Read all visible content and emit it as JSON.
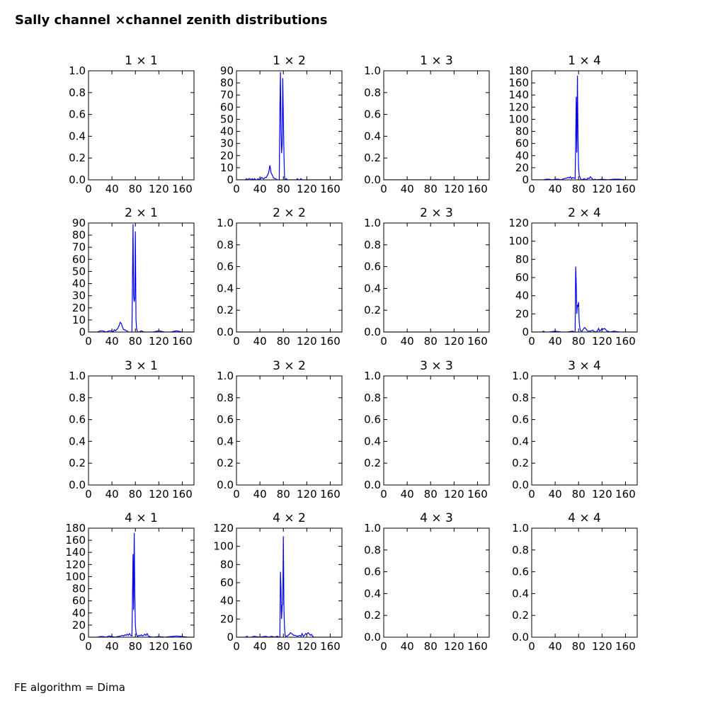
{
  "figure": {
    "title": "Sally channel ×channel zenith distributions",
    "footer": "FE algorithm = Dima",
    "line_color": "#0000ff"
  },
  "chart_data": [
    {
      "type": "line",
      "title": "1 × 1",
      "x": [],
      "y": [],
      "xlim": [
        0,
        180
      ],
      "ylim": [
        0,
        1
      ],
      "xticks": [
        0,
        40,
        80,
        120,
        160
      ],
      "yticks": [
        "0.0",
        "0.2",
        "0.4",
        "0.6",
        "0.8",
        "1.0"
      ],
      "grid": false
    },
    {
      "type": "line",
      "title": "1 × 2",
      "xlim": [
        0,
        180
      ],
      "ylim": [
        0,
        90
      ],
      "xticks": [
        0,
        40,
        80,
        120,
        160
      ],
      "yticks": [
        "0",
        "10",
        "20",
        "30",
        "40",
        "50",
        "60",
        "70",
        "80",
        "90"
      ],
      "grid": false,
      "x": [
        0,
        15,
        17,
        19,
        21,
        23,
        25,
        27,
        29,
        31,
        33,
        35,
        37,
        39,
        41,
        43,
        45,
        47,
        49,
        51,
        53,
        55,
        57,
        59,
        61,
        63,
        65,
        67,
        69,
        71,
        73,
        74,
        75,
        76,
        77,
        78,
        79,
        80,
        81,
        82,
        83,
        85,
        87,
        89,
        91,
        93,
        95,
        100,
        102,
        104,
        106,
        108,
        110,
        112,
        180
      ],
      "y": [
        0,
        0,
        1,
        0,
        1,
        1,
        0,
        1,
        0,
        1,
        0,
        0,
        1,
        0,
        1,
        2,
        1,
        1,
        2,
        2,
        4,
        6,
        12,
        6,
        4,
        2,
        1,
        1,
        0,
        0,
        0,
        57,
        89,
        40,
        22,
        30,
        84,
        52,
        20,
        2,
        0,
        1,
        0,
        0,
        0,
        0,
        0,
        0,
        0,
        1,
        0,
        0,
        1,
        0,
        0
      ]
    },
    {
      "type": "line",
      "title": "1 × 3",
      "x": [
        0,
        180
      ],
      "y": [
        0,
        0
      ],
      "xlim": [
        0,
        180
      ],
      "ylim": [
        0,
        1
      ],
      "xticks": [
        0,
        40,
        80,
        120,
        160
      ],
      "yticks": [
        "0.0",
        "0.2",
        "0.4",
        "0.6",
        "0.8",
        "1.0"
      ],
      "grid": false
    },
    {
      "type": "line",
      "title": "1 × 4",
      "xlim": [
        0,
        180
      ],
      "ylim": [
        0,
        180
      ],
      "xticks": [
        0,
        40,
        80,
        120,
        160
      ],
      "yticks": [
        "0",
        "20",
        "40",
        "60",
        "80",
        "100",
        "120",
        "140",
        "160",
        "180"
      ],
      "grid": false,
      "x": [
        0,
        20,
        25,
        30,
        35,
        40,
        45,
        50,
        55,
        60,
        62,
        64,
        66,
        68,
        70,
        72,
        74,
        75,
        76,
        77,
        78,
        79,
        80,
        81,
        82,
        83,
        84,
        85,
        88,
        90,
        92,
        94,
        96,
        98,
        100,
        102,
        104,
        106,
        108,
        110,
        120,
        130,
        140,
        150,
        160,
        180
      ],
      "y": [
        0,
        0,
        1,
        1,
        0,
        1,
        1,
        0,
        2,
        3,
        4,
        3,
        5,
        2,
        4,
        3,
        2,
        60,
        137,
        45,
        172,
        70,
        20,
        8,
        5,
        3,
        1,
        0,
        1,
        2,
        0,
        1,
        3,
        2,
        5,
        3,
        1,
        0,
        1,
        0,
        1,
        0,
        1,
        1,
        0,
        0
      ]
    },
    {
      "type": "line",
      "title": "2 × 1",
      "xlim": [
        0,
        180
      ],
      "ylim": [
        0,
        90
      ],
      "xticks": [
        0,
        40,
        80,
        120,
        160
      ],
      "yticks": [
        "0",
        "10",
        "20",
        "30",
        "40",
        "50",
        "60",
        "70",
        "80",
        "90"
      ],
      "grid": false,
      "x": [
        0,
        15,
        20,
        25,
        30,
        35,
        40,
        42,
        44,
        46,
        48,
        50,
        52,
        54,
        56,
        58,
        60,
        62,
        64,
        66,
        68,
        70,
        72,
        74,
        75,
        76,
        77,
        78,
        79,
        80,
        81,
        82,
        83,
        84,
        86,
        90,
        95,
        100,
        110,
        120,
        130,
        140,
        150,
        160,
        170,
        180
      ],
      "y": [
        0,
        0,
        1,
        1,
        0,
        1,
        1,
        0,
        2,
        1,
        2,
        3,
        5,
        8,
        7,
        4,
        2,
        2,
        1,
        1,
        0,
        0,
        0,
        0,
        40,
        89,
        30,
        25,
        28,
        83,
        10,
        3,
        1,
        0,
        0,
        1,
        0,
        0,
        0,
        1,
        0,
        0,
        1,
        0,
        0,
        0
      ]
    },
    {
      "type": "line",
      "title": "2 × 2",
      "x": [
        0,
        180
      ],
      "y": [
        0,
        0
      ],
      "xlim": [
        0,
        180
      ],
      "ylim": [
        0,
        1
      ],
      "xticks": [
        0,
        40,
        80,
        120,
        160
      ],
      "yticks": [
        "0.0",
        "0.2",
        "0.4",
        "0.6",
        "0.8",
        "1.0"
      ],
      "grid": false
    },
    {
      "type": "line",
      "title": "2 × 3",
      "x": [
        0,
        180
      ],
      "y": [
        0,
        0
      ],
      "xlim": [
        0,
        180
      ],
      "ylim": [
        0,
        1
      ],
      "xticks": [
        0,
        40,
        80,
        120,
        160
      ],
      "yticks": [
        "0.0",
        "0.2",
        "0.4",
        "0.6",
        "0.8",
        "1.0"
      ],
      "grid": false
    },
    {
      "type": "line",
      "title": "2 × 4",
      "xlim": [
        0,
        180
      ],
      "ylim": [
        0,
        120
      ],
      "xticks": [
        0,
        40,
        80,
        120,
        160
      ],
      "yticks": [
        "0",
        "20",
        "40",
        "60",
        "80",
        "100",
        "120"
      ],
      "grid": false,
      "x": [
        0,
        18,
        20,
        22,
        30,
        40,
        50,
        60,
        70,
        73,
        74,
        75,
        76,
        77,
        78,
        79,
        80,
        81,
        82,
        83,
        84,
        86,
        88,
        90,
        92,
        94,
        96,
        98,
        100,
        104,
        108,
        112,
        114,
        116,
        118,
        120,
        122,
        124,
        126,
        128,
        130,
        134,
        140,
        150,
        160,
        180
      ],
      "y": [
        0,
        0,
        1,
        0,
        0,
        1,
        0,
        0,
        1,
        0,
        0,
        72,
        54,
        20,
        30,
        28,
        33,
        12,
        5,
        2,
        1,
        1,
        3,
        5,
        4,
        2,
        1,
        1,
        1,
        2,
        0,
        1,
        4,
        1,
        2,
        4,
        3,
        4,
        3,
        1,
        1,
        0,
        1,
        0,
        0,
        0
      ]
    },
    {
      "type": "line",
      "title": "3 × 1",
      "x": [],
      "y": [],
      "xlim": [
        0,
        180
      ],
      "ylim": [
        0,
        1
      ],
      "xticks": [
        0,
        40,
        80,
        120,
        160
      ],
      "yticks": [
        "0.0",
        "0.2",
        "0.4",
        "0.6",
        "0.8",
        "1.0"
      ],
      "grid": false
    },
    {
      "type": "line",
      "title": "3 × 2",
      "x": [],
      "y": [],
      "xlim": [
        0,
        180
      ],
      "ylim": [
        0,
        1
      ],
      "xticks": [
        0,
        40,
        80,
        120,
        160
      ],
      "yticks": [
        "0.0",
        "0.2",
        "0.4",
        "0.6",
        "0.8",
        "1.0"
      ],
      "grid": false
    },
    {
      "type": "line",
      "title": "3 × 3",
      "x": [],
      "y": [],
      "xlim": [
        0,
        180
      ],
      "ylim": [
        0,
        1
      ],
      "xticks": [
        0,
        40,
        80,
        120,
        160
      ],
      "yticks": [
        "0.0",
        "0.2",
        "0.4",
        "0.6",
        "0.8",
        "1.0"
      ],
      "grid": false
    },
    {
      "type": "line",
      "title": "3 × 4",
      "x": [],
      "y": [],
      "xlim": [
        0,
        180
      ],
      "ylim": [
        0,
        1
      ],
      "xticks": [
        0,
        40,
        80,
        120,
        160
      ],
      "yticks": [
        "0.0",
        "0.2",
        "0.4",
        "0.6",
        "0.8",
        "1.0"
      ],
      "grid": false
    },
    {
      "type": "line",
      "title": "4 × 1",
      "xlim": [
        0,
        180
      ],
      "ylim": [
        0,
        180
      ],
      "xticks": [
        0,
        40,
        80,
        120,
        160
      ],
      "yticks": [
        "0",
        "20",
        "40",
        "60",
        "80",
        "100",
        "120",
        "140",
        "160",
        "180"
      ],
      "grid": false,
      "x": [
        0,
        15,
        20,
        25,
        30,
        35,
        40,
        45,
        50,
        55,
        58,
        60,
        62,
        64,
        66,
        68,
        70,
        72,
        74,
        75,
        76,
        77,
        78,
        79,
        80,
        81,
        82,
        83,
        84,
        86,
        88,
        90,
        92,
        94,
        96,
        98,
        100,
        102,
        104,
        110,
        120,
        130,
        140,
        150,
        160,
        170,
        180
      ],
      "y": [
        0,
        0,
        1,
        1,
        0,
        2,
        1,
        0,
        1,
        2,
        3,
        2,
        4,
        3,
        5,
        3,
        6,
        3,
        2,
        60,
        137,
        45,
        172,
        70,
        20,
        8,
        4,
        2,
        1,
        3,
        2,
        4,
        2,
        3,
        5,
        3,
        6,
        2,
        1,
        0,
        1,
        0,
        1,
        2,
        1,
        0,
        0
      ]
    },
    {
      "type": "line",
      "title": "4 × 2",
      "xlim": [
        0,
        180
      ],
      "ylim": [
        0,
        120
      ],
      "xticks": [
        0,
        40,
        80,
        120,
        160
      ],
      "yticks": [
        "0",
        "20",
        "40",
        "60",
        "80",
        "100",
        "120"
      ],
      "grid": false,
      "x": [
        0,
        15,
        18,
        20,
        25,
        30,
        40,
        50,
        55,
        60,
        65,
        70,
        73,
        74,
        75,
        76,
        77,
        78,
        79,
        80,
        81,
        82,
        83,
        84,
        86,
        88,
        90,
        92,
        94,
        96,
        98,
        100,
        104,
        108,
        110,
        112,
        114,
        116,
        118,
        120,
        122,
        124,
        126,
        128,
        130,
        132,
        140,
        150,
        160,
        180
      ],
      "y": [
        0,
        0,
        1,
        0,
        0,
        1,
        0,
        1,
        0,
        1,
        0,
        1,
        0,
        0,
        72,
        54,
        20,
        35,
        36,
        111,
        30,
        10,
        2,
        1,
        1,
        2,
        3,
        5,
        4,
        3,
        2,
        2,
        1,
        2,
        1,
        4,
        1,
        2,
        4,
        3,
        5,
        4,
        2,
        3,
        1,
        0,
        0,
        0,
        0,
        0
      ]
    },
    {
      "type": "line",
      "title": "4 × 3",
      "x": [],
      "y": [],
      "xlim": [
        0,
        180
      ],
      "ylim": [
        0,
        1
      ],
      "xticks": [
        0,
        40,
        80,
        120,
        160
      ],
      "yticks": [
        "0.0",
        "0.2",
        "0.4",
        "0.6",
        "0.8",
        "1.0"
      ],
      "grid": false
    },
    {
      "type": "line",
      "title": "4 × 4",
      "x": [],
      "y": [],
      "xlim": [
        0,
        180
      ],
      "ylim": [
        0,
        1
      ],
      "xticks": [
        0,
        40,
        80,
        120,
        160
      ],
      "yticks": [
        "0.0",
        "0.2",
        "0.4",
        "0.6",
        "0.8",
        "1.0"
      ],
      "grid": false
    }
  ]
}
